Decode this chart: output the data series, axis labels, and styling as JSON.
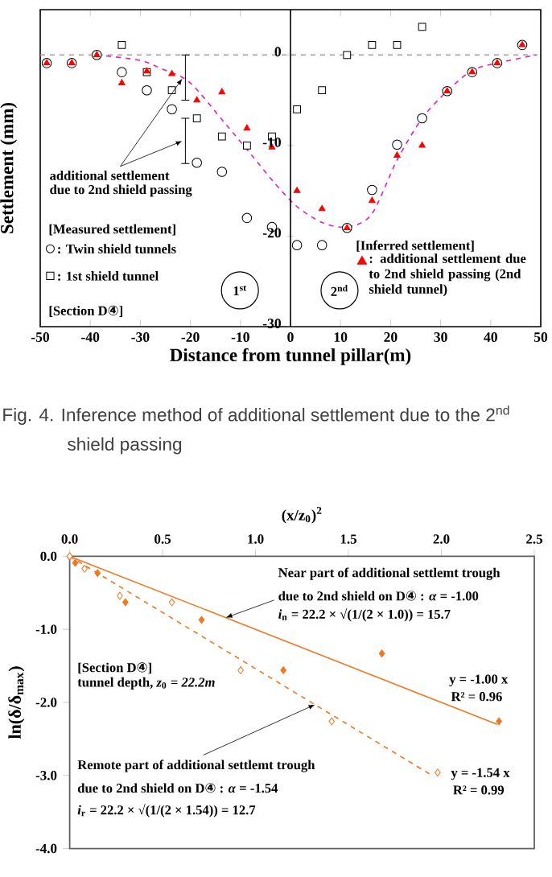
{
  "chart_data": [
    {
      "type": "scatter",
      "xlabel": "Distance from tunnel pillar(m)",
      "ylabel": "Settlement (mm)",
      "xlim": [
        -50,
        50
      ],
      "xticks": [
        -50,
        -40,
        -30,
        -20,
        -10,
        0,
        10,
        20,
        30,
        40,
        50
      ],
      "ylim": [
        -30,
        5
      ],
      "yticks": [
        0,
        -10,
        -20,
        -30
      ],
      "legend": "bottom",
      "x": [
        -48.7,
        -43.7,
        -38.7,
        -33.7,
        -28.7,
        -23.7,
        -18.7,
        -13.7,
        -8.7,
        -3.7,
        1.3,
        6.3,
        11.3,
        16.3,
        21.3,
        26.3,
        31.3,
        36.3,
        41.3,
        46.3
      ],
      "series": [
        {
          "name": ": Twin shield tunnels",
          "color": "#000000",
          "marker": "circle",
          "values": [
            -0.9,
            -0.9,
            0,
            -1.9,
            -3.9,
            -6.0,
            -11.9,
            -12.9,
            -18.0,
            -19.0,
            -21.0,
            -21.0,
            -19.1,
            -14.9,
            -9.9,
            -7.0,
            -4.0,
            -1.9,
            -0.9,
            1.1
          ]
        },
        {
          "name": ": 1st shield tunnel",
          "color": "#000000",
          "marker": "square",
          "values": [
            null,
            null,
            null,
            1.1,
            -1.9,
            -3.9,
            -7.0,
            -9.0,
            -10.0,
            -9.0,
            -6.0,
            -3.9,
            0,
            1.1,
            1.1,
            3.1,
            null,
            null,
            null,
            null
          ]
        },
        {
          "name": ": additional settlement due to 2nd shield passing (2nd shield tunnel)",
          "color": "#ff0000",
          "marker": "triangle",
          "values": [
            -0.9,
            -0.9,
            0,
            -3.1,
            -1.8,
            -2.1,
            -5.0,
            -4.1,
            -8.1,
            -10.2,
            -15.0,
            -17.0,
            -19.1,
            -16.1,
            -11.1,
            -10.0,
            -4.0,
            -1.9,
            -0.9,
            1.1
          ]
        },
        {
          "type": "line",
          "color": "#e020c0",
          "line_style": "dashed",
          "marker": "none",
          "x": [
            -38.7,
            -30,
            -25.9,
            -20.2,
            -13,
            -7.7,
            -3.4,
            1.2,
            6.3,
            11.3,
            16.2,
            21.3,
            26.3,
            31.3,
            36.3,
            41.3,
            49.1
          ],
          "values": [
            0,
            -0.6,
            -1.5,
            -3.0,
            -7.6,
            -11.1,
            -14.0,
            -16.7,
            -18.5,
            -19.0,
            -17.6,
            -11.6,
            -7.0,
            -4.0,
            -1.7,
            -0.9,
            0
          ]
        }
      ],
      "ref_lines": [
        {
          "axis": "y",
          "value": 0,
          "color": "#a0a0a0",
          "line_style": "dashed"
        }
      ],
      "annotations": [
        {
          "text": "additional settlement",
          "x": -21.6,
          "y": -2.6
        },
        "due to 2nd shield passing",
        "[Measured settlement]",
        "[Section D④]",
        "[Inferred settlement]",
        "1$^{st}$",
        "2$^{nd}$",
        "Fig. 4. Inference method of additional settlement due to the 2$^{nd}$",
        "shield passing"
      ]
    },
    {
      "type": "scatter",
      "xlabel": "(x/z$_{0}$)$^{2}$",
      "ylabel": "ln(δ/δ$_{max}$)",
      "xlim": [
        0,
        2.5
      ],
      "xticks": [
        {
          "value": 0,
          "label": "0.0"
        },
        {
          "value": 0.5,
          "label": "0.5"
        },
        {
          "value": 1,
          "label": "1.0"
        },
        {
          "value": 1.5,
          "label": "1.5"
        },
        {
          "value": 2,
          "label": "2.0"
        },
        {
          "value": 2.5,
          "label": "2.5"
        }
      ],
      "ylim": [
        -4,
        0
      ],
      "yticks": [
        {
          "value": 0,
          "label": "0.0"
        },
        {
          "value": -1,
          "label": "-1.0"
        },
        {
          "value": -2,
          "label": "-2.0"
        },
        {
          "value": -3,
          "label": "-3.0"
        },
        {
          "value": -4,
          "label": "-4.0"
        }
      ],
      "series": [
        {
          "color": "#f07820",
          "marker": "diamond",
          "x": [
            0,
            0.03,
            0.15,
            0.3,
            0.71,
            1.15,
            1.68,
            2.31
          ],
          "values": [
            0,
            -0.09,
            -0.23,
            -0.63,
            -0.87,
            -1.56,
            -1.33,
            -2.26
          ]
        },
        {
          "color": "#f07820",
          "marker": "diamond",
          "x": [
            0,
            0.08,
            0.27,
            0.55,
            0.92,
            1.41,
            1.98
          ],
          "values": [
            0,
            -0.17,
            -0.54,
            -0.63,
            -1.56,
            -2.26,
            -2.96
          ]
        },
        {
          "type": "line",
          "color": "#f07820",
          "line_style": "solid",
          "marker": "none",
          "x": [
            0,
            2.3
          ],
          "values": [
            0,
            -2.3
          ]
        },
        {
          "type": "line",
          "color": "#f07820",
          "line_style": "dashed",
          "marker": "none",
          "x": [
            0,
            1.95
          ],
          "values": [
            0,
            -3.0
          ]
        }
      ],
      "annotations": [
        "Near part of additional settlemt trough",
        {
          "text": "due to 2nd shield on D④ : *α* = -1.00",
          "x": 0.84,
          "y": -0.84
        },
        "*i*$_{n}$ = 22.2 × √(1/(2 × 1.0)) = 15.7",
        "[Section D④]",
        "tunnel depth, *z*$_{0}$ = *22.2m*",
        "y = -1.00 x",
        "R² = 0.96",
        {
          "text": "Remote part of additional settlemt trough",
          "x": 1.32,
          "y": -2.03
        },
        "due to 2nd shield on D④ : *α* = -1.54",
        "*i*$_{r}$ = 22.2 × √(1/(2 × 1.54)) = 12.7",
        "y = -1.54 x",
        "R² = 0.99"
      ]
    }
  ]
}
